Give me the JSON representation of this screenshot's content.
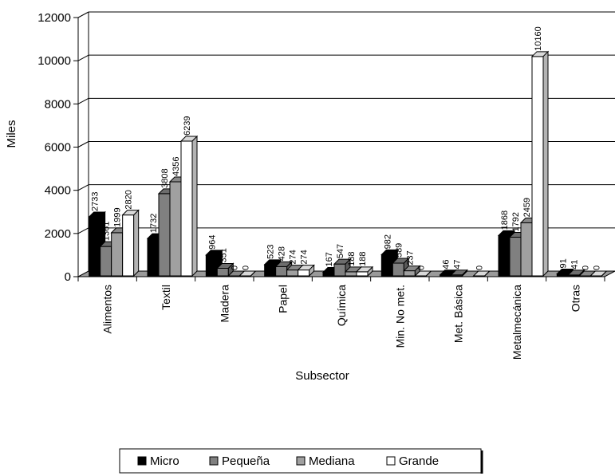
{
  "chart_data": {
    "type": "bar",
    "title": "",
    "xlabel": "Subsector",
    "ylabel": "Miles",
    "ylim": [
      0,
      12000
    ],
    "yticks": [
      0,
      2000,
      4000,
      6000,
      8000,
      10000,
      12000
    ],
    "grid": true,
    "legend_position": "bottom",
    "categories": [
      "Alimentos",
      "Textil",
      "Madera",
      "Papel",
      "Química",
      "Min. No met.",
      "Met. Básica",
      "Metalmecánica",
      "Otras"
    ],
    "series": [
      {
        "name": "Micro",
        "color": "#000000",
        "values": [
          2733,
          1732,
          964,
          523,
          167,
          982,
          46,
          1868,
          91
        ],
        "labels": [
          "2733",
          "1732",
          "964",
          "523",
          "167",
          "982",
          "46",
          "1868",
          "91"
        ]
      },
      {
        "name": "Pequeña",
        "color": "#808080",
        "values": [
          1361,
          3808,
          351,
          428,
          547,
          589,
          47,
          1792,
          41
        ],
        "labels": [
          "1361",
          "3808",
          "351",
          "428",
          "547",
          "589",
          "47",
          "1792",
          "41"
        ]
      },
      {
        "name": "Mediana",
        "color": "#a0a0a0",
        "values": [
          1999,
          4356,
          0,
          274,
          188,
          237,
          null,
          2459,
          0
        ],
        "labels": [
          "1999",
          "4356",
          "0",
          "274",
          "188",
          "237",
          "",
          "2459",
          "0"
        ]
      },
      {
        "name": "Grande",
        "color": "#ffffff",
        "values": [
          2820,
          6239,
          0,
          274,
          188,
          0,
          0,
          10160,
          0
        ],
        "labels": [
          "2820",
          "6239",
          "0",
          "274",
          "188",
          "0",
          "0",
          "10160",
          "0"
        ]
      }
    ]
  }
}
